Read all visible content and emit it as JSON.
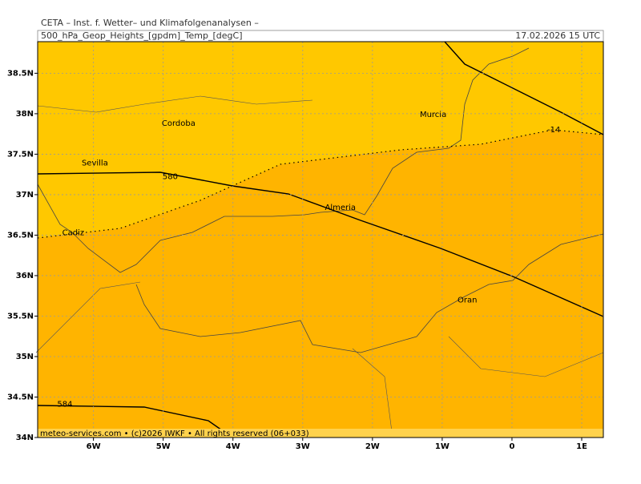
{
  "header": {
    "title": "CETA – Inst. f. Wetter– und Klimafolgenanalysen –",
    "field": "500_hPa_Geop_Heights_[gpdm]_Temp_[degC]",
    "valid_time": "17.02.2026  15 UTC"
  },
  "map": {
    "lon_range": [
      -6.8,
      1.31
    ],
    "lat_range": [
      34,
      38.89
    ],
    "lon_ticks": [
      {
        "value": -6,
        "label": "6W"
      },
      {
        "value": -5,
        "label": "5W"
      },
      {
        "value": -4,
        "label": "4W"
      },
      {
        "value": -3,
        "label": "3W"
      },
      {
        "value": -2,
        "label": "2W"
      },
      {
        "value": -1,
        "label": "1W"
      },
      0,
      {
        "value": 1,
        "label": "1E"
      }
    ],
    "lat_ticks": [
      {
        "value": 34,
        "label": "34N"
      },
      {
        "value": 34.5,
        "label": "34.5N"
      },
      {
        "value": 35,
        "label": "35N"
      },
      {
        "value": 35.5,
        "label": "35.5N"
      },
      {
        "value": 36,
        "label": "36N"
      },
      {
        "value": 36.5,
        "label": "36.5N"
      },
      {
        "value": 37,
        "label": "37N"
      },
      {
        "value": 37.5,
        "label": "37.5N"
      },
      {
        "value": 38,
        "label": "38N"
      },
      {
        "value": 38.5,
        "label": "38.5N"
      }
    ],
    "grid": true,
    "cities": [
      {
        "name": "Cordoba",
        "lon": -4.78,
        "lat": 37.88
      },
      {
        "name": "Sevilla",
        "lon": -5.98,
        "lat": 37.39
      },
      {
        "name": "Almeria",
        "lon": -2.46,
        "lat": 36.84
      },
      {
        "name": "Murcia",
        "lon": -1.13,
        "lat": 37.99
      },
      {
        "name": "Cadiz",
        "lon": -6.29,
        "lat": 36.53
      },
      {
        "name": "Oran",
        "lon": -0.64,
        "lat": 35.7
      }
    ],
    "contour_labels": [
      {
        "label": "580",
        "lon": -4.9,
        "lat": 37.22
      },
      {
        "label": "584",
        "lon": -6.41,
        "lat": 34.41
      },
      {
        "label": "-14",
        "lon": 0.6,
        "lat": 37.8
      }
    ]
  },
  "footer": "meteo-services.com • (c)2026 IWKF • All rights reserved (06+033)"
}
